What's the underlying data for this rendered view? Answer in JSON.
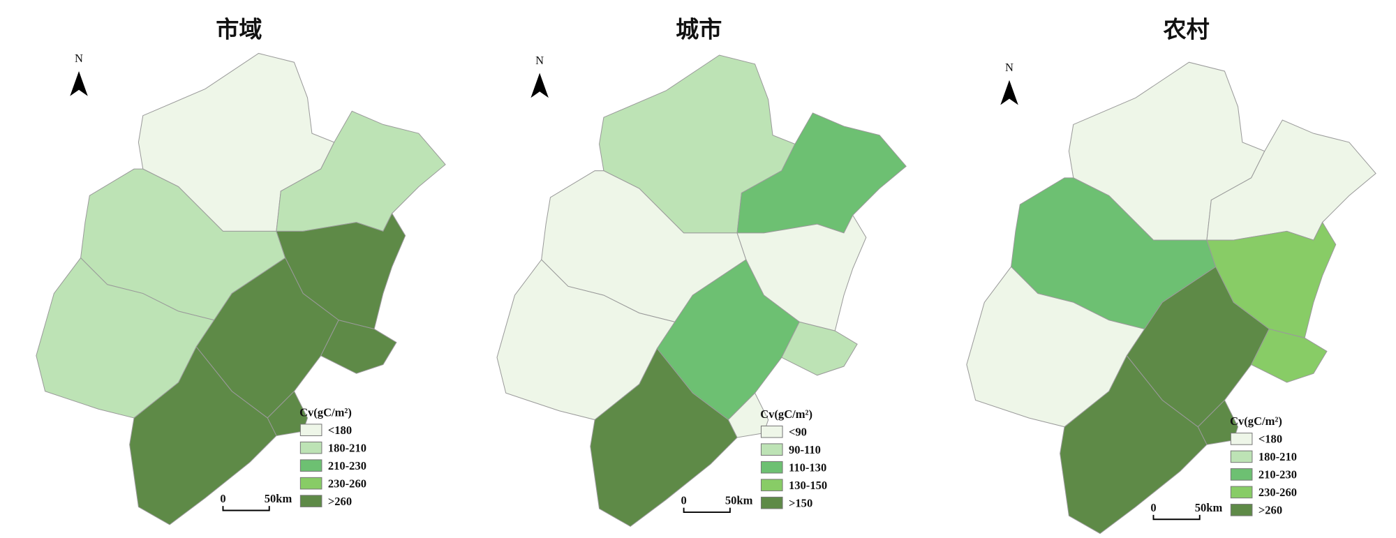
{
  "panels": [
    {
      "title": "市域",
      "north": "N",
      "scale": {
        "start": "0",
        "end": "50km"
      },
      "legend": {
        "title": "Cv(gC/m²)",
        "items": [
          {
            "label": "<180",
            "color": "#eef6e8"
          },
          {
            "label": "180-210",
            "color": "#bde3b5"
          },
          {
            "label": "210-230",
            "color": "#6dc072"
          },
          {
            "label": "230-260",
            "color": "#88cc66"
          },
          {
            "label": ">260",
            "color": "#5e8a47"
          }
        ]
      },
      "region_colors": [
        "#eef6e8",
        "#bde3b5",
        "#bde3b5",
        "#5e8a47",
        "#bde3b5",
        "#5e8a47",
        "#5e8a47",
        "#5e8a47",
        "#5e8a47"
      ]
    },
    {
      "title": "城市",
      "north": "N",
      "scale": {
        "start": "0",
        "end": "50km"
      },
      "legend": {
        "title": "Cv(gC/m²)",
        "items": [
          {
            "label": "<90",
            "color": "#eef6e8"
          },
          {
            "label": "90-110",
            "color": "#bde3b5"
          },
          {
            "label": "110-130",
            "color": "#6dc072"
          },
          {
            "label": "130-150",
            "color": "#88cc66"
          },
          {
            "label": ">150",
            "color": "#5e8a47"
          }
        ]
      },
      "region_colors": [
        "#bde3b5",
        "#6dc072",
        "#eef6e8",
        "#eef6e8",
        "#eef6e8",
        "#6dc072",
        "#bde3b5",
        "#eef6e8",
        "#5e8a47"
      ]
    },
    {
      "title": "农村",
      "north": "N",
      "scale": {
        "start": "0",
        "end": "50km"
      },
      "legend": {
        "title": "Cv(gC/m²)",
        "items": [
          {
            "label": "<180",
            "color": "#eef6e8"
          },
          {
            "label": "180-210",
            "color": "#bde3b5"
          },
          {
            "label": "210-230",
            "color": "#6dc072"
          },
          {
            "label": "230-260",
            "color": "#88cc66"
          },
          {
            "label": ">260",
            "color": "#5e8a47"
          }
        ]
      },
      "region_colors": [
        "#eef6e8",
        "#eef6e8",
        "#6dc072",
        "#88cc66",
        "#eef6e8",
        "#5e8a47",
        "#88cc66",
        "#5e8a47",
        "#5e8a47"
      ]
    }
  ]
}
